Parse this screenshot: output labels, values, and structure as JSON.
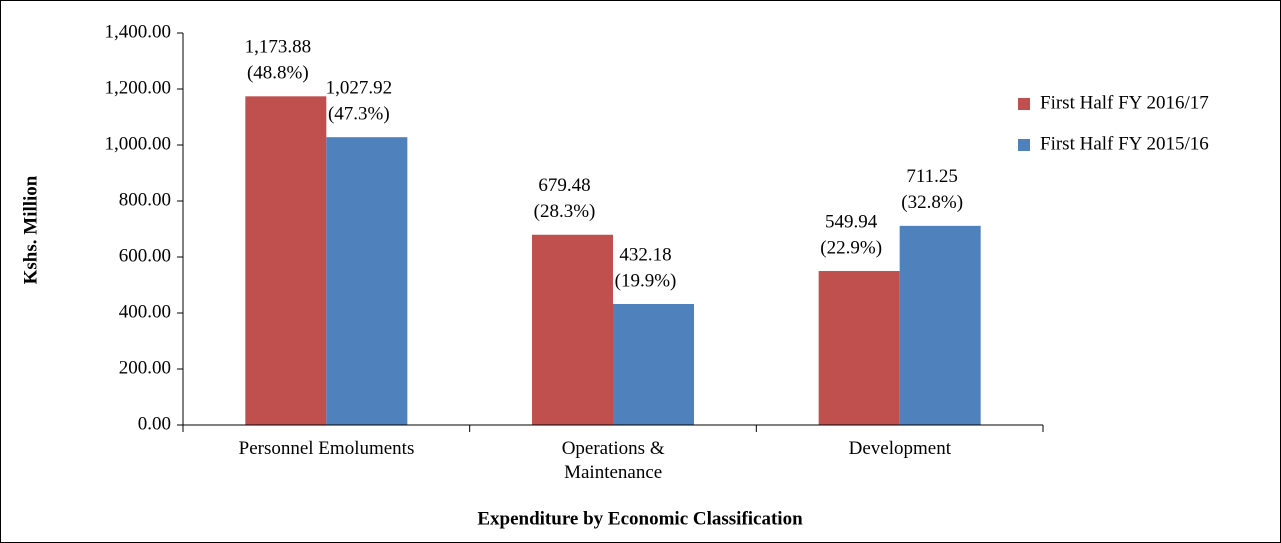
{
  "chart_data": {
    "type": "bar",
    "x_label": "Expenditure by Economic Classification",
    "y_label": "Kshs. Million",
    "categories": [
      "Personnel Emoluments",
      "Operations &\nMaintenance",
      "Development"
    ],
    "series": [
      {
        "name": "First Half FY 2016/17",
        "color": "#c0504d",
        "values": [
          1173.88,
          679.48,
          549.94
        ],
        "value_labels": [
          "1,173.88",
          "679.48",
          "549.94"
        ],
        "percentages": [
          48.8,
          28.3,
          22.9
        ],
        "percentage_labels": [
          "(48.8%)",
          "(28.3%)",
          "(22.9%)"
        ]
      },
      {
        "name": "First Half FY 2015/16",
        "color": "#4f81bd",
        "values": [
          1027.92,
          432.18,
          711.25
        ],
        "value_labels": [
          "1,027.92",
          "432.18",
          "711.25"
        ],
        "percentages": [
          47.3,
          19.9,
          32.8
        ],
        "percentage_labels": [
          "(47.3%)",
          "(19.9%)",
          "(32.8%)"
        ]
      }
    ],
    "ylim": [
      0,
      1400
    ],
    "yticks": [
      {
        "value": 0,
        "label": "0.00"
      },
      {
        "value": 200,
        "label": "200.00"
      },
      {
        "value": 400,
        "label": "400.00"
      },
      {
        "value": 600,
        "label": "600.00"
      },
      {
        "value": 800,
        "label": "800.00"
      },
      {
        "value": 1000,
        "label": "1,000.00"
      },
      {
        "value": 1200,
        "label": "1,200.00"
      },
      {
        "value": 1400,
        "label": "1,400.00"
      }
    ],
    "legend": "right"
  }
}
